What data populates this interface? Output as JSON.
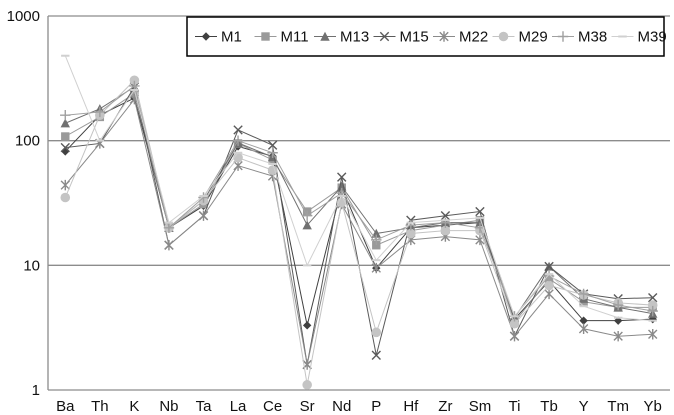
{
  "chart_data": {
    "type": "line",
    "y_scale": "log",
    "ylim": [
      1,
      1000
    ],
    "y_ticks": [
      "1",
      "10",
      "100",
      "1000"
    ],
    "y_tick_values": [
      1,
      10,
      100,
      1000
    ],
    "grid": "horizontal",
    "legend_position": "top-right",
    "categories": [
      "Ba",
      "Th",
      "K",
      "Nb",
      "Ta",
      "La",
      "Ce",
      "Sr",
      "Nd",
      "P",
      "Hf",
      "Zr",
      "Sm",
      "Ti",
      "Tb",
      "Y",
      "Tm",
      "Yb"
    ],
    "series": [
      {
        "name": "M1",
        "marker": "diamond",
        "color": "#404040",
        "values": [
          82,
          160,
          220,
          20,
          30,
          90,
          75,
          3.3,
          42,
          9.5,
          20,
          21,
          22,
          3.7,
          7.5,
          3.6,
          3.6,
          3.7
        ]
      },
      {
        "name": "M11",
        "marker": "square",
        "color": "#9a9a9a",
        "values": [
          108,
          155,
          240,
          20,
          31,
          95,
          70,
          27,
          42,
          14.5,
          19,
          21,
          23,
          3.5,
          7.8,
          5.1,
          4.6,
          4.6
        ]
      },
      {
        "name": "M13",
        "marker": "triangle",
        "color": "#707070",
        "values": [
          138,
          180,
          270,
          20,
          33,
          96,
          74,
          21,
          43,
          18,
          20,
          22,
          22,
          3.8,
          9.8,
          5.4,
          4.6,
          4.1
        ]
      },
      {
        "name": "M15",
        "marker": "x",
        "color": "#5a5a5a",
        "values": [
          88,
          95,
          270,
          14.5,
          25,
          122,
          92,
          1.6,
          51,
          1.9,
          23,
          25,
          27,
          2.7,
          9.8,
          5.9,
          5.4,
          5.5
        ]
      },
      {
        "name": "M22",
        "marker": "star",
        "color": "#8a8a8a",
        "values": [
          44,
          95,
          215,
          14.5,
          25,
          63,
          52,
          1.6,
          31,
          9.5,
          16,
          17,
          16,
          2.7,
          5.9,
          3.1,
          2.7,
          2.8
        ]
      },
      {
        "name": "M29",
        "marker": "circle",
        "color": "#c4c4c4",
        "values": [
          35,
          160,
          305,
          20,
          33,
          73,
          58,
          1.1,
          32,
          2.9,
          18,
          19,
          19,
          3.4,
          6.9,
          5.8,
          5.0,
          4.8
        ]
      },
      {
        "name": "M38",
        "marker": "plus",
        "color": "#a0a0a0",
        "values": [
          160,
          170,
          275,
          20,
          35,
          100,
          80,
          25,
          38,
          16,
          21,
          22,
          20,
          3.9,
          8.2,
          5.9,
          4.8,
          4.3
        ]
      },
      {
        "name": "M39",
        "marker": "dash",
        "color": "#d0d0d0",
        "values": [
          480,
          100,
          255,
          22,
          36,
          80,
          65,
          10,
          36,
          11,
          22,
          23,
          24,
          3.9,
          8.5,
          4.7,
          3.8,
          3.6
        ]
      }
    ]
  }
}
